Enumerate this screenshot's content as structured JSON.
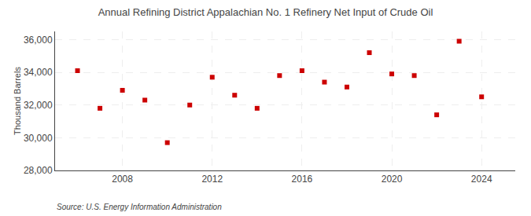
{
  "chart_data": {
    "type": "scatter",
    "title": "Annual Refining District Appalachian No. 1 Refinery Net Input of Crude Oil",
    "ylabel": "Thousand Barrels",
    "annotations": [
      "Source: U.S. Energy Information Administration"
    ],
    "x": [
      2006,
      2007,
      2008,
      2009,
      2010,
      2011,
      2012,
      2013,
      2014,
      2015,
      2016,
      2017,
      2018,
      2019,
      2020,
      2021,
      2022,
      2023,
      2024
    ],
    "values": [
      34100,
      31800,
      32900,
      32300,
      29700,
      32000,
      33700,
      32600,
      31800,
      33800,
      34100,
      33400,
      33100,
      35200,
      33900,
      33800,
      31400,
      35900,
      32500
    ],
    "color": "#cc0000",
    "marker": "square",
    "grid": true,
    "xlim": [
      2005.0,
      2025.5
    ],
    "xticks": [
      2008,
      2012,
      2016,
      2020,
      2024
    ],
    "ylim": [
      28000,
      36500
    ],
    "yticks": [
      {
        "value": 28000,
        "label": "28,000"
      },
      {
        "value": 30000,
        "label": "30,000"
      },
      {
        "value": 32000,
        "label": "32,000"
      },
      {
        "value": 34000,
        "label": "34,000"
      },
      {
        "value": 36000,
        "label": "36,000"
      }
    ]
  }
}
